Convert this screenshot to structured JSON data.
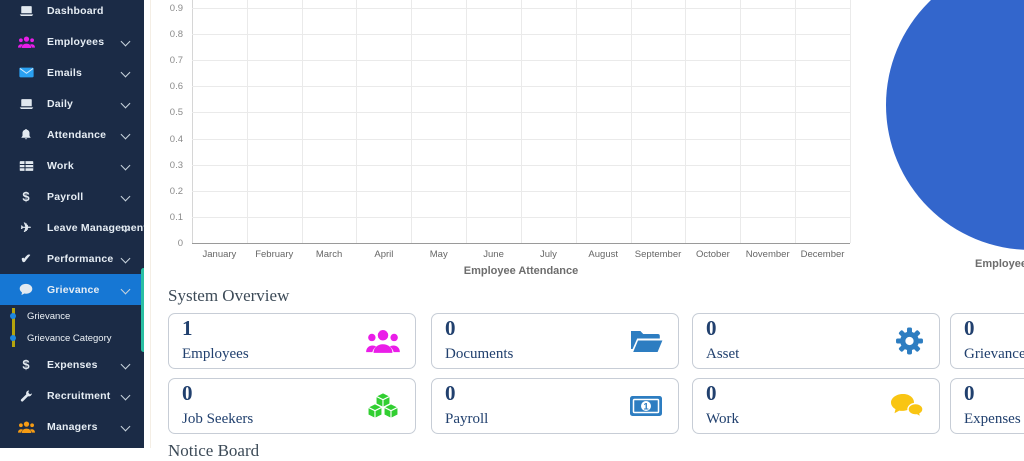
{
  "sidebar": {
    "items": [
      {
        "label": "Dashboard",
        "icon": "laptop-icon",
        "expandable": false
      },
      {
        "label": "Employees",
        "icon": "users-icon",
        "icon_color": "#e81ee9",
        "expandable": true
      },
      {
        "label": "Emails",
        "icon": "envelope-icon",
        "icon_color": "#2aa1f2",
        "expandable": true
      },
      {
        "label": "Daily",
        "icon": "laptop-icon",
        "expandable": true
      },
      {
        "label": "Attendance",
        "icon": "bell-icon",
        "expandable": true
      },
      {
        "label": "Work",
        "icon": "table-icon",
        "expandable": true
      },
      {
        "label": "Payroll",
        "icon": "dollar-icon",
        "expandable": true
      },
      {
        "label": "Leave Management",
        "icon": "plane-icon",
        "expandable": true
      },
      {
        "label": "Performance",
        "icon": "check-icon",
        "expandable": true
      },
      {
        "label": "Grievance",
        "icon": "chat-bubble-icon",
        "expandable": true,
        "active": true,
        "children": [
          "Grievance",
          "Grievance Category"
        ]
      },
      {
        "label": "Expenses",
        "icon": "dollar-icon",
        "expandable": true
      },
      {
        "label": "Recruitment",
        "icon": "wrench-icon",
        "expandable": true
      },
      {
        "label": "Managers",
        "icon": "users-icon",
        "icon_color": "#f59b14",
        "expandable": true
      }
    ],
    "scrollbar_color": "#2abfa3",
    "active_item_color": "#1677d4",
    "background_color": "#1b2b46"
  },
  "sections": {
    "overview_title": "System Overview",
    "notice_title": "Notice Board"
  },
  "cards": {
    "items": [
      {
        "label": "Employees",
        "value": "1",
        "icon": "users-icon",
        "icon_color": "#ea1de8"
      },
      {
        "label": "Documents",
        "value": "0",
        "icon": "folder-open-icon",
        "icon_color": "#2d7dc1"
      },
      {
        "label": "Asset",
        "value": "0",
        "icon": "gear-icon",
        "icon_color": "#2d7dc1"
      },
      {
        "label": "Grievance",
        "value": "0"
      },
      {
        "label": "Job Seekers",
        "value": "0",
        "icon": "cubes-icon",
        "icon_color": "#31cf31"
      },
      {
        "label": "Payroll",
        "value": "0",
        "icon": "money-bill-icon",
        "icon_color": "#2d7dc1"
      },
      {
        "label": "Work",
        "value": "0",
        "icon": "comments-icon",
        "icon_color": "#f9c513"
      },
      {
        "label": "Expenses",
        "value": "0"
      }
    ],
    "text_color": "#21406e"
  },
  "chart_data": [
    {
      "type": "line",
      "title": "Employee Attendance",
      "x": [
        "January",
        "February",
        "March",
        "April",
        "May",
        "June",
        "July",
        "August",
        "September",
        "October",
        "November",
        "December"
      ],
      "series": [],
      "ylim": [
        0,
        1
      ],
      "yticks_shown": [
        "0.9",
        "0.8",
        "0.7",
        "0.6",
        "0.5",
        "0.4",
        "0.3",
        "0.2",
        "0.1",
        "0"
      ],
      "grid": true,
      "note": "chart area is empty (no data series plotted)"
    },
    {
      "type": "pie",
      "title": "Employee Gender",
      "slices": [
        {
          "value": 1,
          "color": "#3366cc"
        }
      ]
    }
  ]
}
